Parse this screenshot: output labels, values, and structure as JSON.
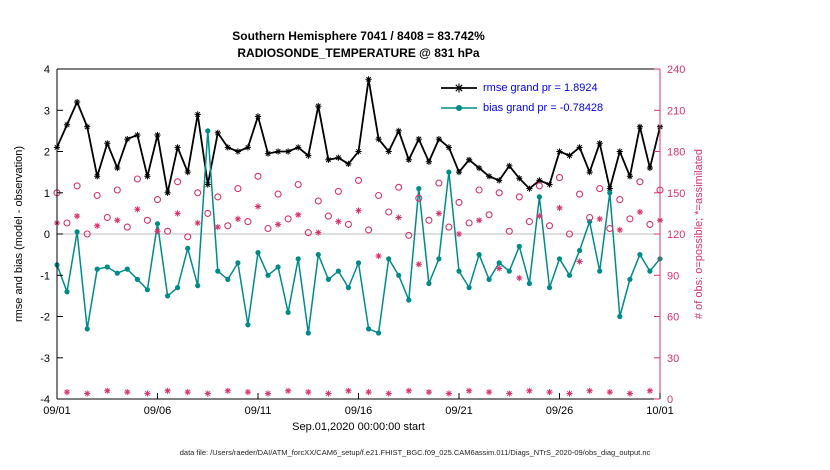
{
  "header": {
    "title_line1": "Southern Hemisphere 7041 / 8408 = 83.742%",
    "title_line2": "RADIOSONDE_TEMPERATURE @ 831 hPa"
  },
  "axes": {
    "xlabel": "Sep.01,2020 00:00:00 start",
    "ylabel_left": "rmse and bias (model - observation)",
    "ylabel_right": "# of obs: o=possible; *=assimilated"
  },
  "footer": {
    "text": "data file: /Users/raeder/DAI/ATM_forcXX/CAM6_setup/f.e21.FHIST_BGC.f09_025.CAM6assim.011/Diags_NTrS_2020-09/obs_diag_output.nc"
  },
  "legend": [
    {
      "label": "rmse grand pr = 1.8924"
    },
    {
      "label": "bias grand pr = -0.78428"
    }
  ],
  "colors": {
    "rmse": "#000000",
    "bias": "#008b8b",
    "counts": "#d6336c",
    "legend_text": "#0000ee",
    "zero_line": "#bdbdbd",
    "axis": "#000000"
  },
  "chart_data": {
    "type": "line",
    "title": "Southern Hemisphere 7041 / 8408 = 83.742%",
    "subtitle": "RADIOSONDE_TEMPERATURE @ 831 hPa",
    "xlabel": "Sep.01,2020 00:00:00 start",
    "ylabel_left": "rmse and bias (model - observation)",
    "ylabel_right": "# of obs: o=possible; *=assimilated",
    "grid": false,
    "legend_position": "top-right",
    "x_unit": "days since Sep.01,2020 00:00:00",
    "x_tick_days": [
      0,
      5,
      10,
      15,
      20,
      25,
      30
    ],
    "x_tick_labels": [
      "09/01",
      "09/06",
      "09/11",
      "09/16",
      "09/21",
      "09/26",
      "10/01"
    ],
    "ylim_left": [
      -4,
      4
    ],
    "yticks_left": [
      -4,
      -3,
      -2,
      -1,
      0,
      1,
      2,
      3,
      4
    ],
    "ylim_right": [
      0,
      240
    ],
    "yticks_right": [
      0,
      30,
      60,
      90,
      120,
      150,
      180,
      210,
      240
    ],
    "x": [
      0,
      0.5,
      1,
      1.5,
      2,
      2.5,
      3,
      3.5,
      4,
      4.5,
      5,
      5.5,
      6,
      6.5,
      7,
      7.5,
      8,
      8.5,
      9,
      9.5,
      10,
      10.5,
      11,
      11.5,
      12,
      12.5,
      13,
      13.5,
      14,
      14.5,
      15,
      15.5,
      16,
      16.5,
      17,
      17.5,
      18,
      18.5,
      19,
      19.5,
      20,
      20.5,
      21,
      21.5,
      22,
      22.5,
      23,
      23.5,
      24,
      24.5,
      25,
      25.5,
      26,
      26.5,
      27,
      27.5,
      28,
      28.5,
      29,
      29.5,
      30
    ],
    "series": [
      {
        "name": "rmse",
        "grand_value": 1.8924,
        "axis": "left",
        "color": "#000000",
        "marker": "asterisk",
        "line": true,
        "line_width": 1.8,
        "y": [
          2.1,
          2.65,
          3.2,
          2.6,
          1.4,
          2.2,
          1.6,
          2.3,
          2.4,
          1.4,
          2.4,
          1.0,
          2.1,
          1.5,
          2.9,
          1.2,
          2.45,
          2.1,
          2.0,
          2.1,
          2.85,
          1.95,
          2.0,
          2.0,
          2.1,
          1.9,
          3.1,
          1.8,
          1.85,
          1.7,
          2.0,
          3.75,
          2.3,
          2.0,
          2.5,
          1.8,
          2.3,
          1.75,
          2.3,
          2.1,
          1.5,
          1.8,
          1.6,
          1.4,
          1.3,
          1.65,
          1.35,
          1.1,
          1.3,
          1.2,
          2.0,
          1.9,
          2.1,
          1.5,
          2.2,
          1.1,
          2.0,
          1.4,
          2.6,
          1.6,
          2.6
        ]
      },
      {
        "name": "bias",
        "grand_value": -0.78428,
        "axis": "left",
        "color": "#008b8b",
        "marker": "circle-filled",
        "line": true,
        "line_width": 1.5,
        "y": [
          -0.75,
          -1.4,
          0.05,
          -2.3,
          -0.85,
          -0.8,
          -0.95,
          -0.85,
          -1.1,
          -1.35,
          0.25,
          -1.5,
          -1.3,
          -0.35,
          -1.25,
          2.5,
          -0.9,
          -1.1,
          -0.7,
          -2.2,
          -0.45,
          -1.0,
          -0.8,
          -1.9,
          -0.6,
          -2.4,
          -0.5,
          -1.1,
          -0.9,
          -1.3,
          -0.7,
          -2.3,
          -2.4,
          -0.6,
          -1.0,
          -1.6,
          1.1,
          -1.2,
          -0.6,
          1.5,
          -0.9,
          -1.3,
          -0.5,
          -1.1,
          -0.7,
          -0.9,
          -0.3,
          -1.2,
          0.9,
          -1.3,
          -0.6,
          -1.0,
          -0.4,
          0.3,
          -0.9,
          1.0,
          -2.0,
          -1.1,
          -0.5,
          -0.9,
          -0.6
        ]
      },
      {
        "name": "possible",
        "axis": "right",
        "color": "#d6336c",
        "marker": "circle-open",
        "line": false,
        "y": [
          150,
          128,
          155,
          120,
          148,
          132,
          152,
          125,
          160,
          130,
          145,
          122,
          158,
          118,
          150,
          135,
          147,
          126,
          153,
          129,
          162,
          124,
          149,
          131,
          156,
          121,
          144,
          133,
          151,
          127,
          159,
          123,
          148,
          136,
          154,
          119,
          146,
          130,
          157,
          125,
          143,
          128,
          152,
          134,
          150,
          122,
          147,
          129,
          155,
          126,
          161,
          120,
          149,
          132,
          153,
          124,
          145,
          131,
          158,
          127,
          152
        ]
      },
      {
        "name": "assimilated",
        "axis": "right",
        "color": "#d6336c",
        "marker": "asterisk",
        "line": false,
        "y": [
          128,
          5,
          133,
          4,
          126,
          6,
          130,
          5,
          138,
          4,
          122,
          6,
          135,
          5,
          128,
          4,
          125,
          6,
          131,
          5,
          140,
          4,
          127,
          6,
          134,
          5,
          121,
          4,
          129,
          6,
          137,
          5,
          104,
          4,
          132,
          6,
          98,
          5,
          135,
          4,
          120,
          6,
          130,
          5,
          95,
          4,
          88,
          6,
          133,
          5,
          139,
          4,
          100,
          6,
          131,
          5,
          123,
          4,
          136,
          6,
          130
        ]
      }
    ]
  }
}
